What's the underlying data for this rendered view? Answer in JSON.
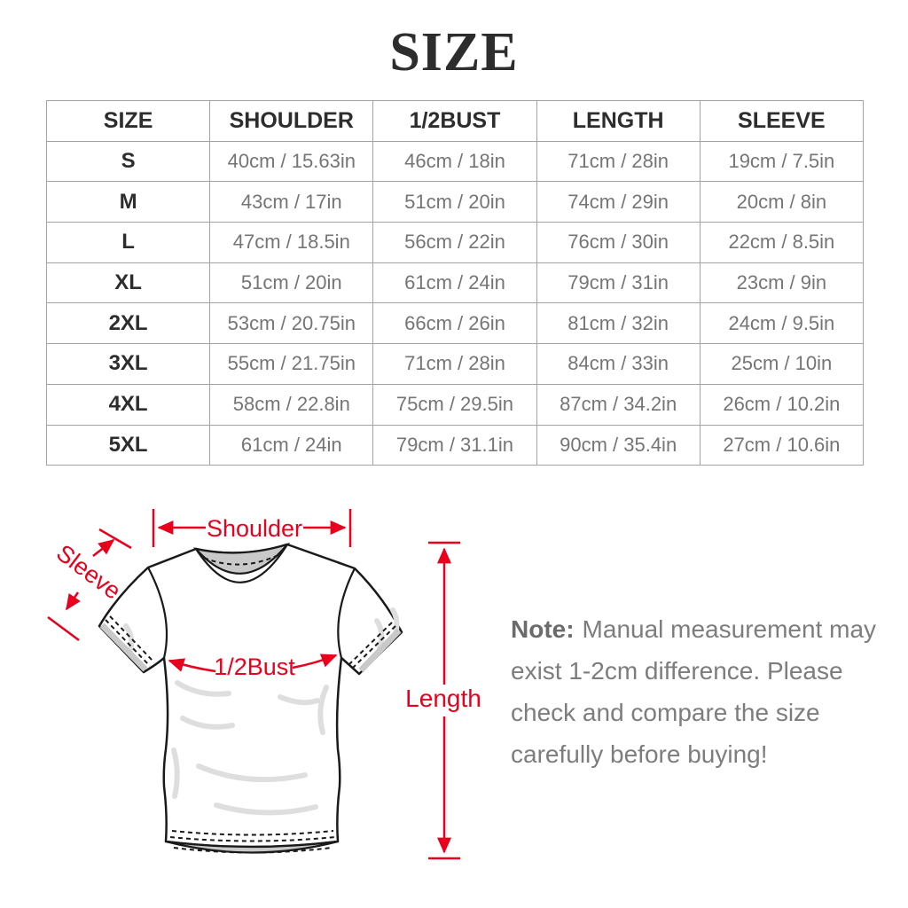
{
  "title": "SIZE",
  "table": {
    "headers": [
      "SIZE",
      "SHOULDER",
      "1/2BUST",
      "LENGTH",
      "SLEEVE"
    ],
    "rows": [
      [
        "S",
        "40cm / 15.63in",
        "46cm / 18in",
        "71cm / 28in",
        "19cm / 7.5in"
      ],
      [
        "M",
        "43cm / 17in",
        "51cm / 20in",
        "74cm / 29in",
        "20cm / 8in"
      ],
      [
        "L",
        "47cm / 18.5in",
        "56cm / 22in",
        "76cm / 30in",
        "22cm / 8.5in"
      ],
      [
        "XL",
        "51cm / 20in",
        "61cm / 24in",
        "79cm / 31in",
        "23cm / 9in"
      ],
      [
        "2XL",
        "53cm / 20.75in",
        "66cm / 26in",
        "81cm / 32in",
        "24cm / 9.5in"
      ],
      [
        "3XL",
        "55cm / 21.75in",
        "71cm / 28in",
        "84cm / 33in",
        "25cm / 10in"
      ],
      [
        "4XL",
        "58cm / 22.8in",
        "75cm / 29.5in",
        "87cm / 34.2in",
        "26cm / 10.2in"
      ],
      [
        "5XL",
        "61cm / 24in",
        "79cm / 31.1in",
        "90cm / 35.4in",
        "27cm / 10.6in"
      ]
    ]
  },
  "diagram": {
    "annotation_color": "#e8001d",
    "labels": {
      "shoulder": "Shoulder",
      "sleeve": "Sleeve",
      "bust": "1/2Bust",
      "length": "Length"
    }
  },
  "note": {
    "label": "Note:",
    "line1_rest": "Manual measurement may",
    "line2": "exist 1-2cm difference. Please",
    "line3": "check and compare the size",
    "line4": "carefully before buying!"
  }
}
